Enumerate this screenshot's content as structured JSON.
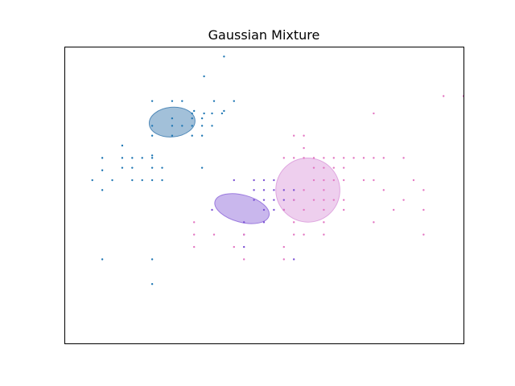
{
  "chart_data": {
    "type": "scatter",
    "title": "Gaussian Mixture",
    "xlabel": "",
    "ylabel": "",
    "xlim": [
      -10,
      10
    ],
    "ylim": [
      -6,
      6
    ],
    "grid": false,
    "ticks_visible": false,
    "series": [
      {
        "color": "#1f77b4",
        "points": [
          [
            -2.0,
            5.6
          ],
          [
            -3.0,
            4.8
          ],
          [
            -2.5,
            3.8
          ],
          [
            -3.0,
            3.3
          ],
          [
            -1.5,
            3.8
          ],
          [
            -3.5,
            3.4
          ],
          [
            -2.0,
            3.4
          ],
          [
            -5.6,
            3.8
          ],
          [
            -4.6,
            3.8
          ],
          [
            -4.1,
            3.8
          ],
          [
            -3.6,
            3.3
          ],
          [
            -2.6,
            3.3
          ],
          [
            -2.1,
            3.3
          ],
          [
            -5.6,
            2.8
          ],
          [
            -4.6,
            2.8
          ],
          [
            -4.1,
            2.8
          ],
          [
            -3.6,
            2.8
          ],
          [
            -3.1,
            2.8
          ],
          [
            -2.6,
            2.8
          ],
          [
            -3.6,
            2.4
          ],
          [
            -5.6,
            2.4
          ],
          [
            -4.6,
            2.4
          ],
          [
            -3.1,
            2.4
          ],
          [
            -3.1,
            3.1
          ],
          [
            -4.6,
            3.1
          ],
          [
            -3.6,
            3.1
          ],
          [
            -7.1,
            2.0
          ],
          [
            -8.1,
            1.5
          ],
          [
            -7.1,
            1.5
          ],
          [
            -6.6,
            1.5
          ],
          [
            -6.1,
            1.5
          ],
          [
            -7.1,
            1.1
          ],
          [
            -6.6,
            1.1
          ],
          [
            -5.6,
            1.1
          ],
          [
            -5.1,
            1.1
          ],
          [
            -8.1,
            1.0
          ],
          [
            -7.6,
            0.6
          ],
          [
            -8.6,
            0.6
          ],
          [
            -6.6,
            0.6
          ],
          [
            -6.1,
            0.6
          ],
          [
            -5.6,
            0.6
          ],
          [
            -8.1,
            0.2
          ],
          [
            -5.6,
            1.5
          ],
          [
            -5.1,
            0.6
          ],
          [
            -8.1,
            -2.6
          ],
          [
            -5.6,
            -2.6
          ],
          [
            -5.6,
            -3.6
          ],
          [
            -3.1,
            1.1
          ],
          [
            -5.6,
            1.6
          ]
        ]
      },
      {
        "color": "#7b50d4",
        "points": [
          [
            -1.5,
            0.6
          ],
          [
            -0.5,
            0.6
          ],
          [
            0.0,
            0.6
          ],
          [
            -0.5,
            0.2
          ],
          [
            0.0,
            0.2
          ],
          [
            0.5,
            0.2
          ],
          [
            1.0,
            0.2
          ],
          [
            -0.5,
            -0.2
          ],
          [
            0.0,
            -0.2
          ],
          [
            0.5,
            -0.2
          ],
          [
            1.0,
            -0.2
          ],
          [
            1.5,
            -0.2
          ],
          [
            0.0,
            -0.6
          ],
          [
            0.5,
            -0.6
          ],
          [
            1.0,
            -0.6
          ],
          [
            -2.6,
            -0.6
          ],
          [
            -1.0,
            -1.1
          ],
          [
            0.0,
            -1.1
          ],
          [
            -1.0,
            -1.6
          ],
          [
            -1.0,
            -2.1
          ],
          [
            1.5,
            -2.6
          ],
          [
            0.5,
            0.6
          ],
          [
            1.5,
            0.2
          ]
        ]
      },
      {
        "color": "#e377c2",
        "points": [
          [
            1.5,
            2.4
          ],
          [
            2.0,
            2.4
          ],
          [
            2.0,
            1.9
          ],
          [
            1.0,
            1.5
          ],
          [
            1.5,
            1.5
          ],
          [
            2.0,
            1.5
          ],
          [
            2.5,
            1.5
          ],
          [
            3.0,
            1.5
          ],
          [
            3.5,
            1.5
          ],
          [
            4.0,
            1.5
          ],
          [
            4.5,
            1.5
          ],
          [
            5.0,
            1.5
          ],
          [
            5.5,
            1.5
          ],
          [
            6.0,
            1.5
          ],
          [
            7.0,
            1.5
          ],
          [
            2.5,
            1.1
          ],
          [
            3.0,
            1.1
          ],
          [
            3.5,
            1.1
          ],
          [
            4.0,
            1.1
          ],
          [
            2.5,
            0.6
          ],
          [
            3.0,
            0.6
          ],
          [
            3.5,
            0.6
          ],
          [
            4.0,
            0.6
          ],
          [
            5.0,
            0.6
          ],
          [
            5.5,
            0.6
          ],
          [
            7.5,
            0.6
          ],
          [
            2.0,
            0.2
          ],
          [
            3.0,
            0.2
          ],
          [
            6.0,
            0.2
          ],
          [
            8.0,
            0.2
          ],
          [
            1.5,
            -0.2
          ],
          [
            2.5,
            -0.2
          ],
          [
            3.0,
            -0.2
          ],
          [
            3.5,
            -0.2
          ],
          [
            4.0,
            -0.2
          ],
          [
            2.0,
            -0.6
          ],
          [
            3.0,
            -0.6
          ],
          [
            4.0,
            -0.6
          ],
          [
            6.5,
            -0.6
          ],
          [
            8.0,
            -0.6
          ],
          [
            1.5,
            -1.1
          ],
          [
            3.0,
            -1.1
          ],
          [
            8.0,
            -1.6
          ],
          [
            2.0,
            -1.6
          ],
          [
            3.0,
            -1.6
          ],
          [
            5.5,
            -1.1
          ],
          [
            9.0,
            4.0
          ],
          [
            10.0,
            4.0
          ],
          [
            5.5,
            3.3
          ],
          [
            7.0,
            -0.2
          ],
          [
            1.0,
            -0.6
          ],
          [
            -2.5,
            -1.6
          ],
          [
            -3.5,
            -1.6
          ],
          [
            -1.0,
            -1.6
          ],
          [
            -1.5,
            -2.1
          ],
          [
            -3.5,
            -2.1
          ],
          [
            -3.5,
            -1.1
          ],
          [
            1.5,
            -1.6
          ],
          [
            -1.0,
            -2.6
          ],
          [
            1.0,
            -2.1
          ],
          [
            1.0,
            -2.6
          ]
        ]
      }
    ],
    "ellipses": [
      {
        "cx": -4.6,
        "cy": 2.95,
        "w": 2.3,
        "h": 1.2,
        "angle": 5,
        "color": "#4682b4",
        "alpha": 0.5
      },
      {
        "cx": -1.1,
        "cy": -0.55,
        "w": 2.8,
        "h": 1.1,
        "angle": -15,
        "color": "#9370db",
        "alpha": 0.5
      },
      {
        "cx": 2.2,
        "cy": 0.2,
        "w": 3.2,
        "h": 2.6,
        "angle": 40,
        "color": "#dda0dd",
        "alpha": 0.5
      }
    ]
  }
}
